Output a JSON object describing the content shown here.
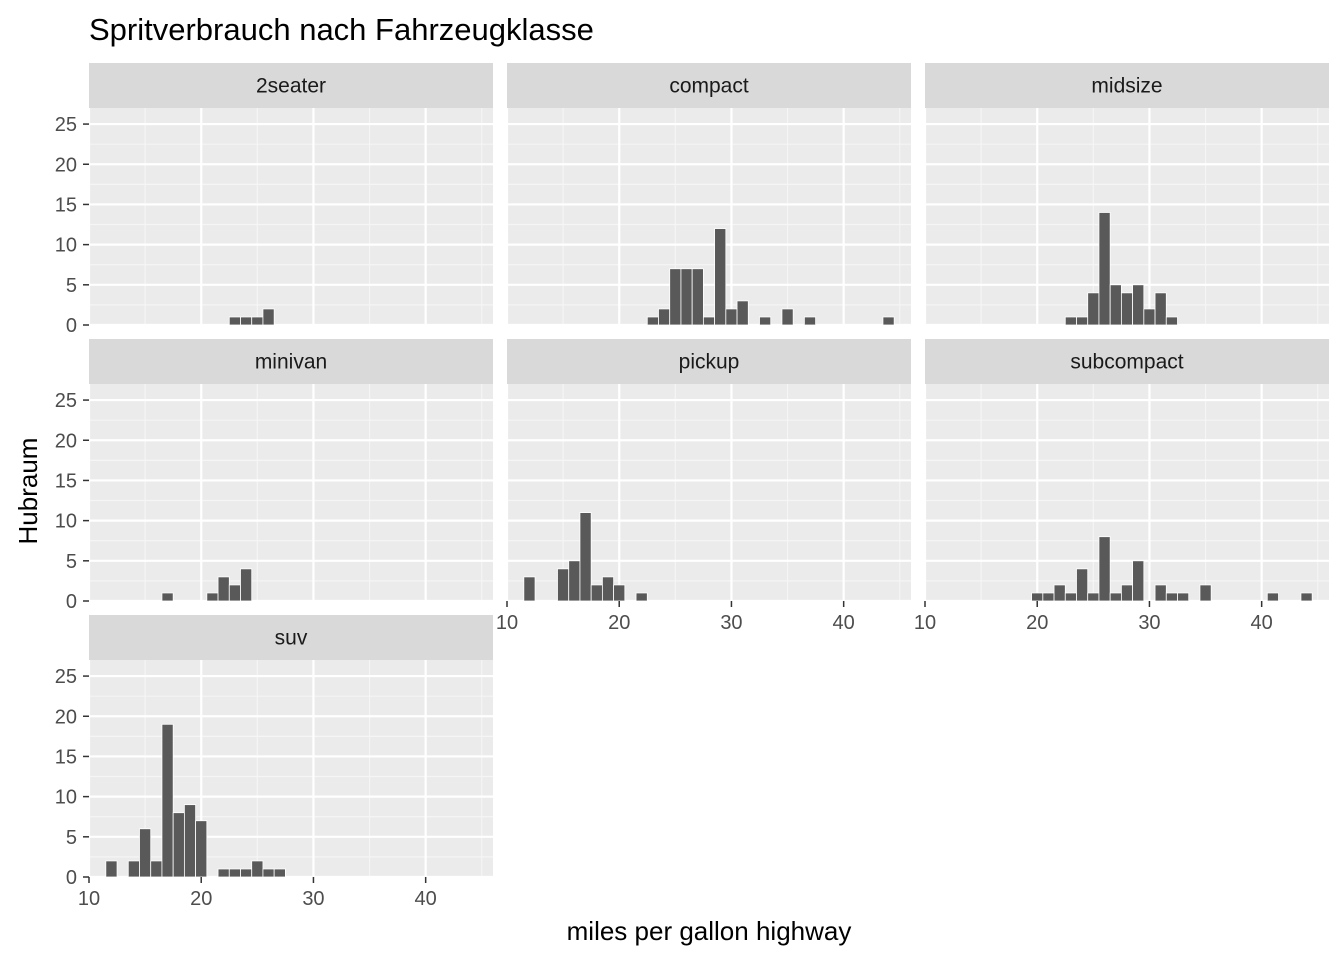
{
  "chart_data": {
    "type": "bar",
    "title": "Spritverbrauch nach Fahrzeugklasse",
    "xlabel": "miles per gallon highway",
    "ylabel": "Hubraum",
    "xlim": [
      10,
      46
    ],
    "ylim": [
      0,
      27
    ],
    "x_ticks": [
      10,
      20,
      30,
      40
    ],
    "y_ticks": [
      0,
      5,
      10,
      15,
      20,
      25
    ],
    "grid": true,
    "panels": [
      {
        "name": "2seater",
        "bins": [
          [
            23,
            1
          ],
          [
            24,
            1
          ],
          [
            25,
            1
          ],
          [
            26,
            2
          ]
        ]
      },
      {
        "name": "compact",
        "bins": [
          [
            23,
            1
          ],
          [
            24,
            2
          ],
          [
            25,
            7
          ],
          [
            26,
            7
          ],
          [
            27,
            7
          ],
          [
            28,
            1
          ],
          [
            29,
            12
          ],
          [
            30,
            2
          ],
          [
            31,
            3
          ],
          [
            33,
            1
          ],
          [
            35,
            2
          ],
          [
            37,
            1
          ],
          [
            44,
            1
          ]
        ]
      },
      {
        "name": "midsize",
        "bins": [
          [
            23,
            1
          ],
          [
            24,
            1
          ],
          [
            25,
            4
          ],
          [
            26,
            14
          ],
          [
            27,
            5
          ],
          [
            28,
            4
          ],
          [
            29,
            5
          ],
          [
            30,
            2
          ],
          [
            31,
            4
          ],
          [
            32,
            1
          ]
        ]
      },
      {
        "name": "minivan",
        "bins": [
          [
            17,
            1
          ],
          [
            21,
            1
          ],
          [
            22,
            3
          ],
          [
            23,
            2
          ],
          [
            24,
            4
          ]
        ]
      },
      {
        "name": "pickup",
        "bins": [
          [
            12,
            3
          ],
          [
            15,
            4
          ],
          [
            16,
            5
          ],
          [
            17,
            11
          ],
          [
            18,
            2
          ],
          [
            19,
            3
          ],
          [
            20,
            2
          ],
          [
            22,
            1
          ]
        ]
      },
      {
        "name": "subcompact",
        "bins": [
          [
            20,
            1
          ],
          [
            21,
            1
          ],
          [
            22,
            2
          ],
          [
            23,
            1
          ],
          [
            24,
            4
          ],
          [
            25,
            1
          ],
          [
            26,
            8
          ],
          [
            27,
            1
          ],
          [
            28,
            2
          ],
          [
            29,
            5
          ],
          [
            31,
            2
          ],
          [
            32,
            1
          ],
          [
            33,
            1
          ],
          [
            35,
            2
          ],
          [
            41,
            1
          ],
          [
            44,
            1
          ]
        ]
      },
      {
        "name": "suv",
        "bins": [
          [
            12,
            2
          ],
          [
            14,
            2
          ],
          [
            15,
            6
          ],
          [
            16,
            2
          ],
          [
            17,
            19
          ],
          [
            18,
            8
          ],
          [
            19,
            9
          ],
          [
            20,
            7
          ],
          [
            22,
            1
          ],
          [
            23,
            1
          ],
          [
            24,
            1
          ],
          [
            25,
            2
          ],
          [
            26,
            1
          ],
          [
            27,
            1
          ]
        ]
      }
    ]
  }
}
